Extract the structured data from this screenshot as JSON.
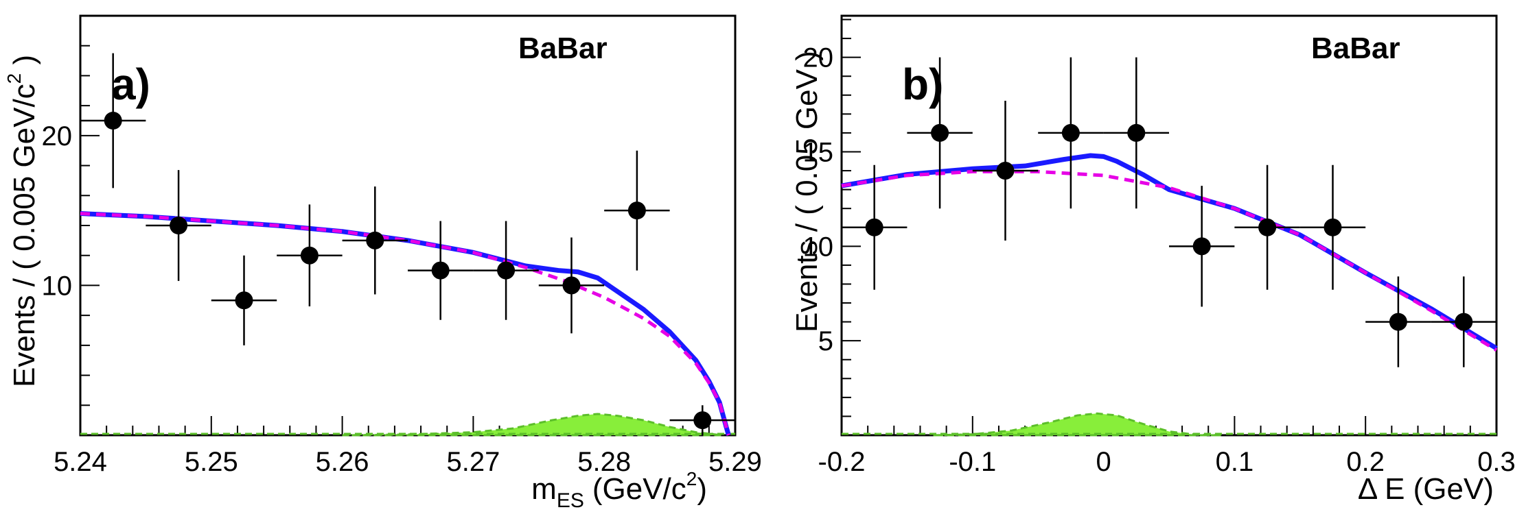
{
  "chart_data": [
    {
      "panel": "a)",
      "type": "scatter",
      "experiment_label": "BaBar",
      "xlabel_main": "m",
      "xlabel_sub": "ES",
      "xlabel_unit": "(GeV/c",
      "xlabel_unit_sup": "2",
      "xlabel_close": ")",
      "ylabel_text": "Events / ( 0.005 GeV/c",
      "ylabel_sup": "2",
      "ylabel_close": " )",
      "xlim": [
        5.24,
        5.29
      ],
      "ylim": [
        0,
        28
      ],
      "xticks": [
        5.24,
        5.25,
        5.26,
        5.27,
        5.28,
        5.29
      ],
      "xtick_labels": [
        "5.24",
        "5.25",
        "5.26",
        "5.27",
        "5.28",
        "5.29"
      ],
      "yticks": [
        10,
        20
      ],
      "ytick_labels": [
        "10",
        "20"
      ],
      "bin_half_width": 0.0025,
      "points": [
        {
          "x": 5.2425,
          "y": 21,
          "err": 4.5
        },
        {
          "x": 5.2475,
          "y": 14,
          "err": 3.7
        },
        {
          "x": 5.2525,
          "y": 9,
          "err": 3.0
        },
        {
          "x": 5.2575,
          "y": 12,
          "err": 3.4
        },
        {
          "x": 5.2625,
          "y": 13,
          "err": 3.6
        },
        {
          "x": 5.2675,
          "y": 11,
          "err": 3.3
        },
        {
          "x": 5.2725,
          "y": 11,
          "err": 3.3
        },
        {
          "x": 5.2775,
          "y": 10,
          "err": 3.2
        },
        {
          "x": 5.2825,
          "y": 15,
          "err": 4.0
        },
        {
          "x": 5.2875,
          "y": 1,
          "err": 1.0
        }
      ],
      "total_fit": [
        [
          5.24,
          14.8
        ],
        [
          5.245,
          14.6
        ],
        [
          5.25,
          14.3
        ],
        [
          5.255,
          14.0
        ],
        [
          5.26,
          13.6
        ],
        [
          5.265,
          13.0
        ],
        [
          5.27,
          12.2
        ],
        [
          5.274,
          11.3
        ],
        [
          5.2765,
          11.0
        ],
        [
          5.278,
          10.9
        ],
        [
          5.2795,
          10.5
        ],
        [
          5.281,
          9.6
        ],
        [
          5.283,
          8.4
        ],
        [
          5.285,
          6.9
        ],
        [
          5.287,
          5.0
        ],
        [
          5.288,
          3.6
        ],
        [
          5.2888,
          2.2
        ],
        [
          5.2893,
          0.6
        ],
        [
          5.2895,
          0
        ]
      ],
      "background_fit": [
        [
          5.24,
          14.8
        ],
        [
          5.245,
          14.6
        ],
        [
          5.25,
          14.3
        ],
        [
          5.255,
          14.0
        ],
        [
          5.26,
          13.6
        ],
        [
          5.265,
          13.0
        ],
        [
          5.27,
          12.2
        ],
        [
          5.274,
          11.2
        ],
        [
          5.277,
          10.3
        ],
        [
          5.28,
          9.2
        ],
        [
          5.283,
          7.8
        ],
        [
          5.285,
          6.6
        ],
        [
          5.287,
          4.8
        ],
        [
          5.288,
          3.5
        ],
        [
          5.2888,
          2.2
        ],
        [
          5.2893,
          0.6
        ],
        [
          5.2895,
          0
        ]
      ],
      "signal_fit": [
        [
          5.26,
          0
        ],
        [
          5.265,
          0.05
        ],
        [
          5.27,
          0.2
        ],
        [
          5.273,
          0.45
        ],
        [
          5.276,
          1.0
        ],
        [
          5.278,
          1.3
        ],
        [
          5.2795,
          1.42
        ],
        [
          5.281,
          1.3
        ],
        [
          5.283,
          1.0
        ],
        [
          5.285,
          0.55
        ],
        [
          5.287,
          0.2
        ],
        [
          5.289,
          0
        ]
      ],
      "colors": {
        "total": "#1a1aff",
        "background": "#e600e6",
        "signal_fill": "#88ee3a",
        "signal_edge": "#5cbf2a"
      }
    },
    {
      "panel": "b)",
      "type": "scatter",
      "experiment_label": "BaBar",
      "xlabel_main": "Δ E (GeV)",
      "ylabel_text": "Events / ( 0.05 GeV )",
      "xlim": [
        -0.2,
        0.3
      ],
      "ylim": [
        0,
        22.2
      ],
      "xticks": [
        -0.2,
        -0.1,
        0,
        0.1,
        0.2,
        0.3
      ],
      "xtick_labels": [
        "-0.2",
        "-0.1",
        "0",
        "0.1",
        "0.2",
        "0.3"
      ],
      "yticks": [
        5,
        10,
        15,
        20
      ],
      "ytick_labels": [
        "5",
        "10",
        "15",
        "20"
      ],
      "bin_half_width": 0.025,
      "points": [
        {
          "x": -0.175,
          "y": 11,
          "err": 3.3
        },
        {
          "x": -0.125,
          "y": 16,
          "err": 4.0
        },
        {
          "x": -0.075,
          "y": 14,
          "err": 3.7
        },
        {
          "x": -0.025,
          "y": 16,
          "err": 4.0
        },
        {
          "x": 0.025,
          "y": 16,
          "err": 4.0
        },
        {
          "x": 0.075,
          "y": 10,
          "err": 3.2
        },
        {
          "x": 0.125,
          "y": 11,
          "err": 3.3
        },
        {
          "x": 0.175,
          "y": 11,
          "err": 3.3
        },
        {
          "x": 0.225,
          "y": 6,
          "err": 2.4
        },
        {
          "x": 0.275,
          "y": 6,
          "err": 2.4
        }
      ],
      "total_fit": [
        [
          -0.2,
          13.2
        ],
        [
          -0.15,
          13.8
        ],
        [
          -0.1,
          14.1
        ],
        [
          -0.06,
          14.25
        ],
        [
          -0.03,
          14.6
        ],
        [
          -0.01,
          14.8
        ],
        [
          0,
          14.75
        ],
        [
          0.01,
          14.5
        ],
        [
          0.03,
          13.8
        ],
        [
          0.05,
          13.0
        ],
        [
          0.1,
          12.0
        ],
        [
          0.15,
          10.6
        ],
        [
          0.2,
          8.6
        ],
        [
          0.25,
          6.7
        ],
        [
          0.3,
          4.6
        ]
      ],
      "background_fit": [
        [
          -0.2,
          13.2
        ],
        [
          -0.15,
          13.75
        ],
        [
          -0.1,
          13.95
        ],
        [
          -0.05,
          13.95
        ],
        [
          0,
          13.75
        ],
        [
          0.05,
          13.1
        ],
        [
          0.1,
          12.0
        ],
        [
          0.15,
          10.6
        ],
        [
          0.2,
          8.6
        ],
        [
          0.25,
          6.6
        ],
        [
          0.3,
          4.5
        ]
      ],
      "signal_fit": [
        [
          -0.13,
          0
        ],
        [
          -0.1,
          0.05
        ],
        [
          -0.07,
          0.25
        ],
        [
          -0.04,
          0.7
        ],
        [
          -0.02,
          1.05
        ],
        [
          -0.005,
          1.15
        ],
        [
          0.01,
          1.05
        ],
        [
          0.03,
          0.6
        ],
        [
          0.05,
          0.2
        ],
        [
          0.07,
          0.03
        ],
        [
          0.09,
          0
        ]
      ],
      "colors": {
        "total": "#1a1aff",
        "background": "#e600e6",
        "signal_fill": "#88ee3a",
        "signal_edge": "#5cbf2a"
      }
    }
  ]
}
